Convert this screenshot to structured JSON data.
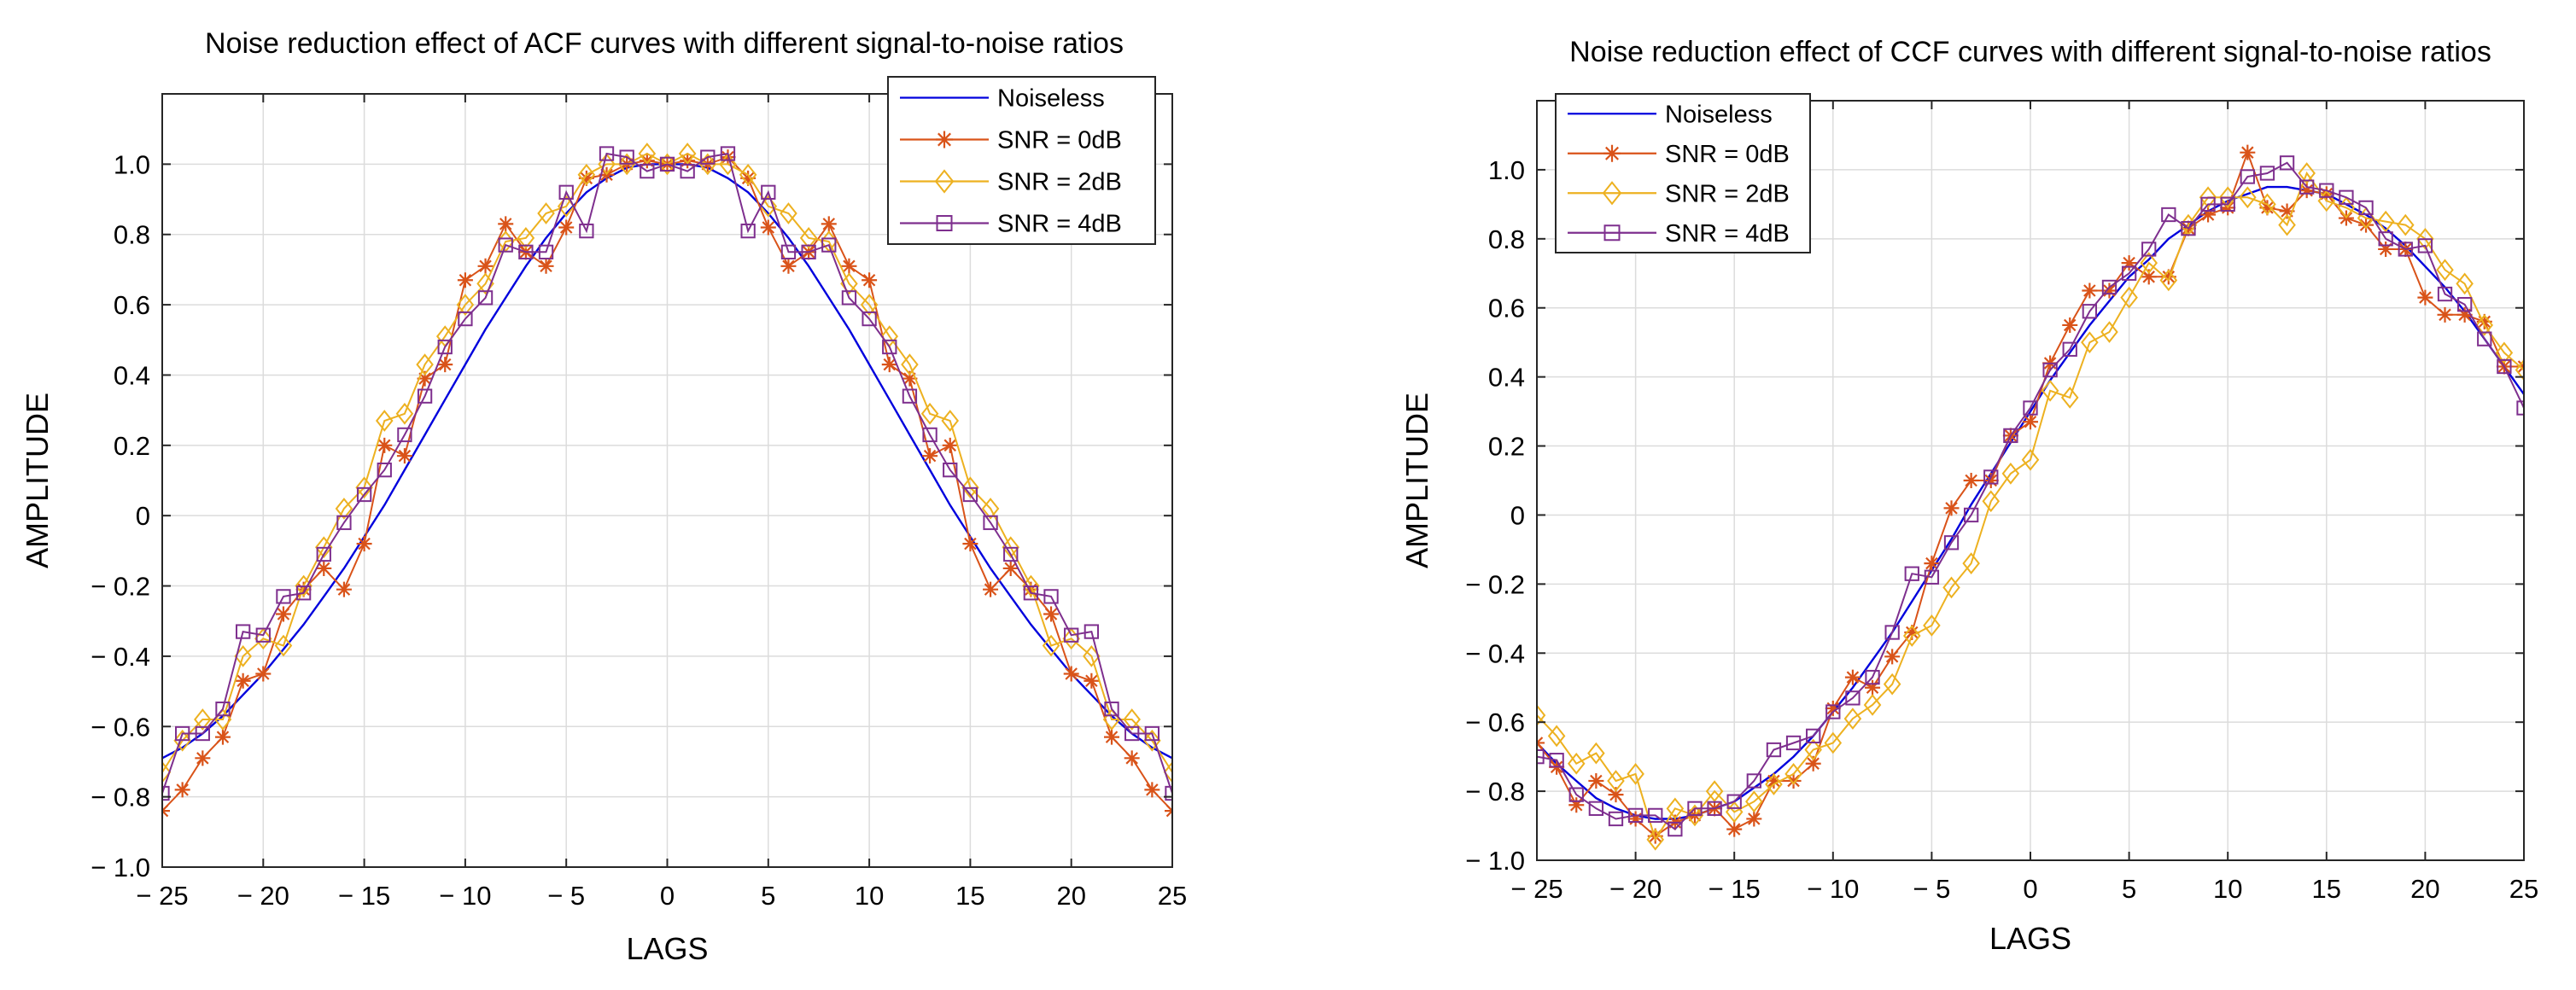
{
  "chart_data": [
    {
      "type": "line",
      "title": "Noise reduction effect of ACF curves with different signal-to-noise ratios",
      "xlabel": "LAGS",
      "ylabel": "AMPLITUDE",
      "xlim": [
        -25,
        25
      ],
      "ylim": [
        -1.0,
        1.2
      ],
      "xticks": [
        -25,
        -20,
        -15,
        -10,
        -5,
        0,
        5,
        10,
        15,
        20,
        25
      ],
      "xtick_labels": [
        "− 25",
        "− 20",
        "− 15",
        "− 10",
        "− 5",
        "0",
        "5",
        "10",
        "15",
        "20",
        "25"
      ],
      "yticks": [
        -1.0,
        -0.8,
        -0.6,
        -0.4,
        -0.2,
        0,
        0.2,
        0.4,
        0.6,
        0.8,
        1.0
      ],
      "ytick_labels": [
        "− 1.0",
        "− 0.8",
        "− 0.6",
        "− 0.4",
        "− 0.2",
        "0",
        "0.2",
        "0.4",
        "0.6",
        "0.8",
        "1.0"
      ],
      "grid": true,
      "legend_position": "top-right",
      "x": [
        -25,
        -24,
        -23,
        -22,
        -21,
        -20,
        -19,
        -18,
        -17,
        -16,
        -15,
        -14,
        -13,
        -12,
        -11,
        -10,
        -9,
        -8,
        -7,
        -6,
        -5,
        -4,
        -3,
        -2,
        -1,
        0,
        1,
        2,
        3,
        4,
        5,
        6,
        7,
        8,
        9,
        10,
        11,
        12,
        13,
        14,
        15,
        16,
        17,
        18,
        19,
        20,
        21,
        22,
        23,
        24,
        25
      ],
      "series": [
        {
          "name": "Noiseless",
          "color": "#0000dd",
          "marker": "none",
          "values": [
            -0.69,
            -0.66,
            -0.62,
            -0.57,
            -0.51,
            -0.45,
            -0.38,
            -0.31,
            -0.23,
            -0.15,
            -0.06,
            0.03,
            0.13,
            0.23,
            0.33,
            0.43,
            0.53,
            0.62,
            0.71,
            0.79,
            0.86,
            0.92,
            0.96,
            0.99,
            1.0,
            1.0,
            1.0,
            0.99,
            0.96,
            0.92,
            0.86,
            0.79,
            0.71,
            0.62,
            0.53,
            0.43,
            0.33,
            0.23,
            0.13,
            0.03,
            -0.06,
            -0.15,
            -0.23,
            -0.31,
            -0.38,
            -0.45,
            -0.51,
            -0.57,
            -0.62,
            -0.66,
            -0.69
          ]
        },
        {
          "name": "SNR = 0dB",
          "color": "#d95319",
          "marker": "asterisk",
          "values": [
            -0.84,
            -0.78,
            -0.69,
            -0.63,
            -0.47,
            -0.45,
            -0.28,
            -0.21,
            -0.15,
            -0.21,
            -0.08,
            0.2,
            0.17,
            0.39,
            0.43,
            0.67,
            0.71,
            0.83,
            0.75,
            0.71,
            0.82,
            0.96,
            0.97,
            1.0,
            1.01,
            1.0,
            1.01,
            1.0,
            1.02,
            0.96,
            0.82,
            0.71,
            0.75,
            0.83,
            0.71,
            0.67,
            0.43,
            0.39,
            0.17,
            0.2,
            -0.08,
            -0.21,
            -0.15,
            -0.21,
            -0.28,
            -0.45,
            -0.47,
            -0.63,
            -0.69,
            -0.78,
            -0.84
          ]
        },
        {
          "name": "SNR = 2dB",
          "color": "#edb120",
          "marker": "diamond",
          "values": [
            -0.73,
            -0.64,
            -0.58,
            -0.58,
            -0.4,
            -0.35,
            -0.37,
            -0.2,
            -0.09,
            0.02,
            0.08,
            0.27,
            0.29,
            0.43,
            0.51,
            0.6,
            0.66,
            0.78,
            0.79,
            0.86,
            0.88,
            0.97,
            1.0,
            1.0,
            1.03,
            1.0,
            1.03,
            1.0,
            1.0,
            0.97,
            0.88,
            0.86,
            0.79,
            0.78,
            0.66,
            0.6,
            0.51,
            0.43,
            0.29,
            0.27,
            0.08,
            0.02,
            -0.09,
            -0.2,
            -0.37,
            -0.35,
            -0.4,
            -0.58,
            -0.58,
            -0.64,
            -0.73
          ]
        },
        {
          "name": "SNR = 4dB",
          "color": "#7e2f8e",
          "marker": "square",
          "values": [
            -0.79,
            -0.62,
            -0.62,
            -0.55,
            -0.33,
            -0.34,
            -0.23,
            -0.22,
            -0.11,
            -0.02,
            0.06,
            0.13,
            0.23,
            0.34,
            0.48,
            0.56,
            0.62,
            0.77,
            0.75,
            0.75,
            0.92,
            0.81,
            1.03,
            1.02,
            0.98,
            1.0,
            0.98,
            1.02,
            1.03,
            0.81,
            0.92,
            0.75,
            0.75,
            0.77,
            0.62,
            0.56,
            0.48,
            0.34,
            0.23,
            0.13,
            0.06,
            -0.02,
            -0.11,
            -0.22,
            -0.23,
            -0.34,
            -0.33,
            -0.55,
            -0.62,
            -0.62,
            -0.79
          ]
        }
      ]
    },
    {
      "type": "line",
      "title": "Noise reduction effect of CCF curves with different signal-to-noise ratios",
      "xlabel": "LAGS",
      "ylabel": "AMPLITUDE",
      "xlim": [
        -25,
        25
      ],
      "ylim": [
        -1.0,
        1.2
      ],
      "xticks": [
        -25,
        -20,
        -15,
        -10,
        -5,
        0,
        5,
        10,
        15,
        20,
        25
      ],
      "xtick_labels": [
        "− 25",
        "− 20",
        "− 15",
        "− 10",
        "− 5",
        "0",
        "5",
        "10",
        "15",
        "20",
        "25"
      ],
      "yticks": [
        -1.0,
        -0.8,
        -0.6,
        -0.4,
        -0.2,
        0,
        0.2,
        0.4,
        0.6,
        0.8,
        1.0
      ],
      "ytick_labels": [
        "− 1.0",
        "− 0.8",
        "− 0.6",
        "− 0.4",
        "− 0.2",
        "0",
        "0.2",
        "0.4",
        "0.6",
        "0.8",
        "1.0"
      ],
      "grid": true,
      "legend_position": "top-left",
      "x": [
        -25,
        -24,
        -23,
        -22,
        -21,
        -20,
        -19,
        -18,
        -17,
        -16,
        -15,
        -14,
        -13,
        -12,
        -11,
        -10,
        -9,
        -8,
        -7,
        -6,
        -5,
        -4,
        -3,
        -2,
        -1,
        0,
        1,
        2,
        3,
        4,
        5,
        6,
        7,
        8,
        9,
        10,
        11,
        12,
        13,
        14,
        15,
        16,
        17,
        18,
        19,
        20,
        21,
        22,
        23,
        24,
        25
      ],
      "series": [
        {
          "name": "Noiseless",
          "color": "#0000dd",
          "marker": "none",
          "values": [
            -0.66,
            -0.72,
            -0.77,
            -0.82,
            -0.85,
            -0.87,
            -0.88,
            -0.88,
            -0.87,
            -0.85,
            -0.83,
            -0.79,
            -0.75,
            -0.7,
            -0.64,
            -0.57,
            -0.5,
            -0.42,
            -0.34,
            -0.25,
            -0.16,
            -0.07,
            0.03,
            0.12,
            0.21,
            0.3,
            0.39,
            0.47,
            0.55,
            0.62,
            0.69,
            0.74,
            0.8,
            0.84,
            0.88,
            0.91,
            0.93,
            0.95,
            0.95,
            0.94,
            0.93,
            0.9,
            0.87,
            0.83,
            0.78,
            0.72,
            0.66,
            0.59,
            0.51,
            0.43,
            0.35
          ]
        },
        {
          "name": "SNR = 0dB",
          "color": "#d95319",
          "marker": "asterisk",
          "values": [
            -0.66,
            -0.73,
            -0.84,
            -0.77,
            -0.81,
            -0.88,
            -0.93,
            -0.89,
            -0.87,
            -0.85,
            -0.91,
            -0.88,
            -0.77,
            -0.77,
            -0.72,
            -0.56,
            -0.47,
            -0.5,
            -0.41,
            -0.34,
            -0.14,
            0.02,
            0.1,
            0.1,
            0.23,
            0.27,
            0.44,
            0.55,
            0.65,
            0.65,
            0.73,
            0.69,
            0.69,
            0.83,
            0.87,
            0.89,
            1.05,
            0.89,
            0.88,
            0.94,
            0.93,
            0.86,
            0.84,
            0.77,
            0.77,
            0.63,
            0.58,
            0.58,
            0.56,
            0.43,
            0.43
          ]
        },
        {
          "name": "SNR = 2dB",
          "color": "#edb120",
          "marker": "diamond",
          "values": [
            -0.58,
            -0.64,
            -0.72,
            -0.69,
            -0.77,
            -0.75,
            -0.94,
            -0.85,
            -0.87,
            -0.8,
            -0.86,
            -0.83,
            -0.78,
            -0.75,
            -0.68,
            -0.66,
            -0.59,
            -0.55,
            -0.49,
            -0.35,
            -0.32,
            -0.21,
            -0.14,
            0.04,
            0.12,
            0.16,
            0.36,
            0.34,
            0.5,
            0.53,
            0.63,
            0.73,
            0.68,
            0.84,
            0.92,
            0.92,
            0.92,
            0.9,
            0.84,
            0.99,
            0.91,
            0.89,
            0.86,
            0.85,
            0.84,
            0.8,
            0.71,
            0.67,
            0.55,
            0.47,
            0.42
          ]
        },
        {
          "name": "SNR = 4dB",
          "color": "#7e2f8e",
          "marker": "square",
          "values": [
            -0.7,
            -0.71,
            -0.81,
            -0.85,
            -0.88,
            -0.87,
            -0.87,
            -0.91,
            -0.85,
            -0.85,
            -0.83,
            -0.77,
            -0.68,
            -0.66,
            -0.64,
            -0.57,
            -0.53,
            -0.47,
            -0.34,
            -0.17,
            -0.18,
            -0.08,
            0.0,
            0.11,
            0.23,
            0.31,
            0.42,
            0.48,
            0.59,
            0.66,
            0.7,
            0.77,
            0.87,
            0.83,
            0.9,
            0.9,
            0.98,
            0.99,
            1.02,
            0.95,
            0.94,
            0.92,
            0.89,
            0.8,
            0.77,
            0.78,
            0.64,
            0.61,
            0.51,
            0.43,
            0.31
          ]
        }
      ]
    }
  ]
}
